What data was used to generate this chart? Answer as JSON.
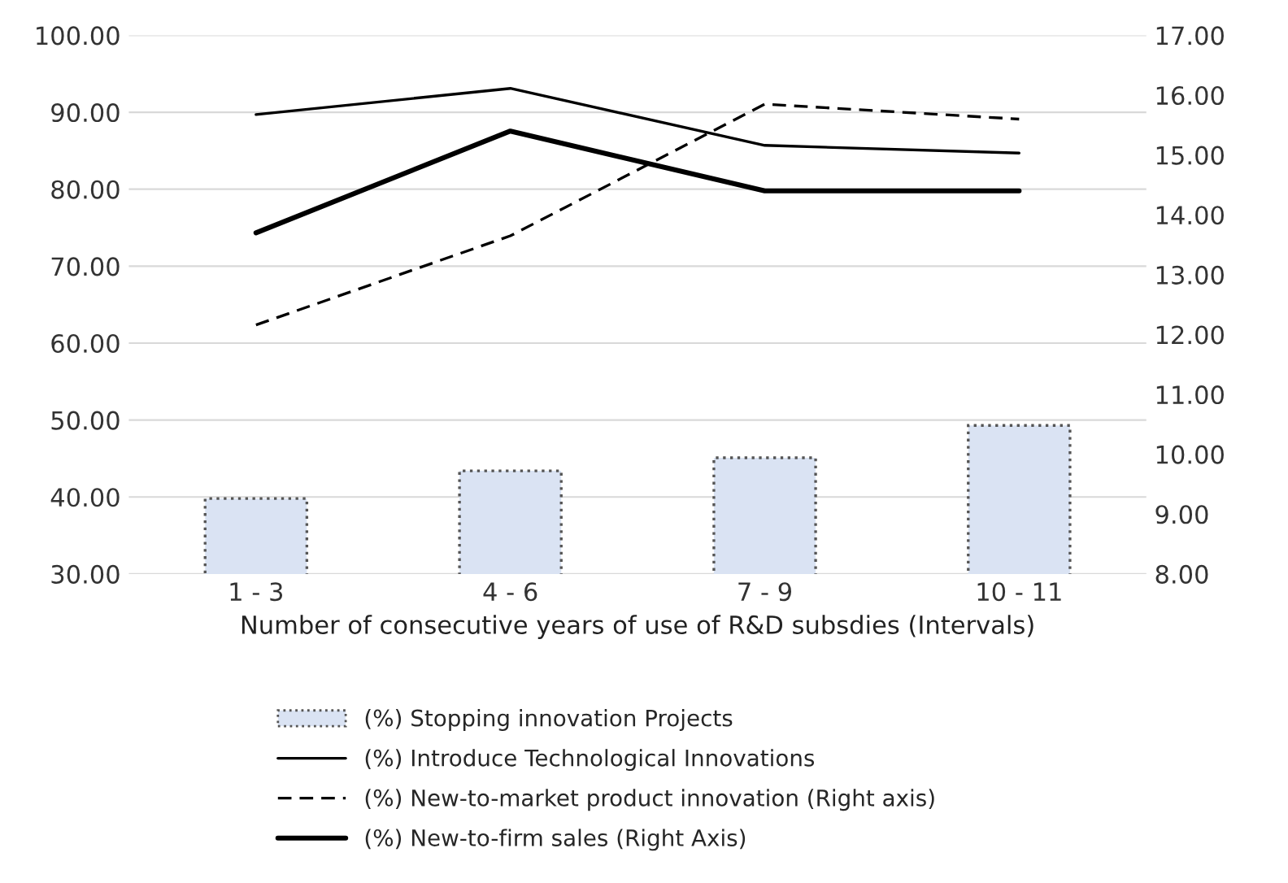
{
  "chart_data": {
    "type": "bar",
    "xlabel": "Number of consecutive years of use of R&D subsdies (Intervals)",
    "categories": [
      "1 - 3",
      "4 - 6",
      "7 - 9",
      "10 - 11"
    ],
    "series": [
      {
        "name": "(%) Stopping innovation Projects",
        "color": "#dae3f3",
        "values": [
          39.8,
          43.4,
          45.1,
          49.3
        ]
      },
      {
        "name": "(%) Introduce Technological Innovations",
        "type": "line",
        "color": "#000000",
        "line_style": "solid",
        "values": [
          89.7,
          93.1,
          85.7,
          84.7
        ]
      },
      {
        "name": "(%) New-to-market product innovation (Right axis)",
        "type": "line",
        "color": "#000000",
        "line_style": "dashed",
        "axis": "y2",
        "values": [
          12.16,
          13.65,
          15.85,
          15.6
        ]
      },
      {
        "name": "(%) New-to-firm sales (Right Axis)",
        "type": "line",
        "color": "#000000",
        "line_style": "solid",
        "axis": "y2",
        "values": [
          13.7,
          15.4,
          14.4,
          14.4
        ]
      }
    ],
    "ylim": [
      30,
      100
    ],
    "yticks": [
      {
        "value": 30,
        "label": "30.00"
      },
      {
        "value": 40,
        "label": "40.00"
      },
      {
        "value": 50,
        "label": "50.00"
      },
      {
        "value": 60,
        "label": "60.00"
      },
      {
        "value": 70,
        "label": "70.00"
      },
      {
        "value": 80,
        "label": "80.00"
      },
      {
        "value": 90,
        "label": "90.00"
      },
      {
        "value": 100,
        "label": "100.00"
      }
    ],
    "y2lim": [
      8,
      17
    ],
    "y2ticks": [
      {
        "value": 8,
        "label": "8.00"
      },
      {
        "value": 9,
        "label": "9.00"
      },
      {
        "value": 10,
        "label": "10.00"
      },
      {
        "value": 11,
        "label": "11.00"
      },
      {
        "value": 12,
        "label": "12.00"
      },
      {
        "value": 13,
        "label": "13.00"
      },
      {
        "value": 14,
        "label": "14.00"
      },
      {
        "value": 15,
        "label": "15.00"
      },
      {
        "value": 16,
        "label": "16.00"
      },
      {
        "value": 17,
        "label": "17.00"
      }
    ],
    "grid": "y",
    "legend": "bottom"
  }
}
